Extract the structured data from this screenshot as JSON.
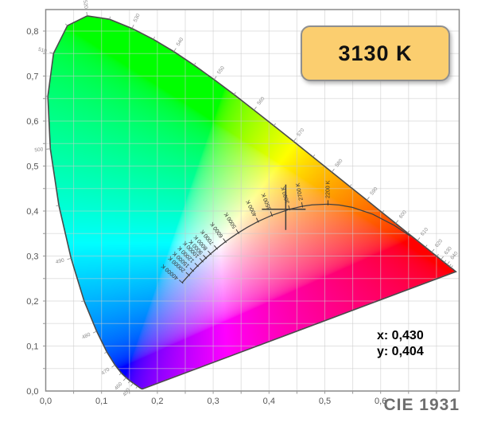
{
  "badge": {
    "label": "3130 K",
    "fill": "#FBCE6F",
    "border_color": "#8F8F8F"
  },
  "readout": {
    "x_label": "x: 0,430",
    "y_label": "y: 0,404"
  },
  "footer": {
    "label": "CIE 1931"
  },
  "chart_data": {
    "type": "scatter",
    "subtype": "cie-1931-chromaticity-diagram",
    "title": "CIE 1931",
    "xlabel": "x",
    "ylabel": "y",
    "xlim": [
      0,
      0.741
    ],
    "ylim": [
      0,
      0.848
    ],
    "grid": true,
    "grid_step": 0.05,
    "x_tick_labels": [
      "0,0",
      "0,1",
      "0,2",
      "0,3",
      "0,4",
      "0,5",
      "0,6"
    ],
    "y_tick_labels": [
      "0,0",
      "0,1",
      "0,2",
      "0,3",
      "0,4",
      "0,5",
      "0,6",
      "0,7",
      "0,8"
    ],
    "marker": {
      "x": 0.43,
      "y": 0.404,
      "cct_label": "3130 K"
    },
    "spectral_locus": [
      [
        380,
        0.1741,
        0.005
      ],
      [
        390,
        0.1738,
        0.0049
      ],
      [
        400,
        0.1733,
        0.0048
      ],
      [
        410,
        0.1726,
        0.0048
      ],
      [
        420,
        0.1714,
        0.0051
      ],
      [
        430,
        0.1689,
        0.0069
      ],
      [
        440,
        0.1644,
        0.0109
      ],
      [
        450,
        0.1566,
        0.0177
      ],
      [
        455,
        0.151,
        0.0227
      ],
      [
        460,
        0.144,
        0.0297
      ],
      [
        465,
        0.1355,
        0.0399
      ],
      [
        470,
        0.1241,
        0.0578
      ],
      [
        475,
        0.1096,
        0.0868
      ],
      [
        480,
        0.0913,
        0.1327
      ],
      [
        485,
        0.0687,
        0.2007
      ],
      [
        490,
        0.0454,
        0.295
      ],
      [
        495,
        0.0235,
        0.4127
      ],
      [
        500,
        0.0082,
        0.5384
      ],
      [
        505,
        0.0039,
        0.6548
      ],
      [
        510,
        0.0139,
        0.7502
      ],
      [
        515,
        0.0389,
        0.812
      ],
      [
        520,
        0.0743,
        0.8338
      ],
      [
        525,
        0.1142,
        0.8262
      ],
      [
        530,
        0.1547,
        0.8059
      ],
      [
        535,
        0.1929,
        0.7816
      ],
      [
        540,
        0.2296,
        0.7543
      ],
      [
        545,
        0.2658,
        0.7243
      ],
      [
        550,
        0.3016,
        0.6923
      ],
      [
        555,
        0.3373,
        0.6589
      ],
      [
        560,
        0.3731,
        0.6245
      ],
      [
        565,
        0.4087,
        0.5896
      ],
      [
        570,
        0.4441,
        0.5547
      ],
      [
        575,
        0.4788,
        0.5202
      ],
      [
        580,
        0.5125,
        0.4866
      ],
      [
        585,
        0.5448,
        0.4544
      ],
      [
        590,
        0.5752,
        0.4242
      ],
      [
        595,
        0.6029,
        0.3965
      ],
      [
        600,
        0.627,
        0.3725
      ],
      [
        605,
        0.6482,
        0.3514
      ],
      [
        610,
        0.6658,
        0.334
      ],
      [
        615,
        0.6801,
        0.3197
      ],
      [
        620,
        0.6915,
        0.3083
      ],
      [
        625,
        0.7006,
        0.2993
      ],
      [
        630,
        0.7079,
        0.292
      ],
      [
        635,
        0.714,
        0.2859
      ],
      [
        640,
        0.719,
        0.2809
      ],
      [
        645,
        0.723,
        0.277
      ],
      [
        650,
        0.726,
        0.274
      ],
      [
        660,
        0.73,
        0.27
      ],
      [
        670,
        0.732,
        0.268
      ],
      [
        680,
        0.7334,
        0.2666
      ],
      [
        700,
        0.7347,
        0.2653
      ]
    ],
    "wavelength_labels": [
      450,
      460,
      470,
      480,
      490,
      500,
      510,
      520,
      530,
      540,
      550,
      560,
      570,
      580,
      590,
      600,
      610,
      620,
      630,
      640
    ],
    "planckian_locus": [
      [
        1000,
        0.6528,
        0.3444
      ],
      [
        1200,
        0.625,
        0.3676
      ],
      [
        1500,
        0.5857,
        0.3931
      ],
      [
        1800,
        0.5493,
        0.4082
      ],
      [
        2000,
        0.5267,
        0.4133
      ],
      [
        2200,
        0.5056,
        0.4152
      ],
      [
        2500,
        0.477,
        0.4137
      ],
      [
        2700,
        0.4599,
        0.4106
      ],
      [
        3000,
        0.4369,
        0.4041
      ],
      [
        3500,
        0.4053,
        0.3907
      ],
      [
        4000,
        0.3805,
        0.3768
      ],
      [
        4500,
        0.3608,
        0.3636
      ],
      [
        5000,
        0.3451,
        0.3516
      ],
      [
        5500,
        0.3325,
        0.3411
      ],
      [
        6000,
        0.3221,
        0.3318
      ],
      [
        6500,
        0.3135,
        0.3237
      ],
      [
        7000,
        0.3064,
        0.3166
      ],
      [
        8000,
        0.2952,
        0.3048
      ],
      [
        9000,
        0.2869,
        0.2956
      ],
      [
        10000,
        0.2807,
        0.2884
      ],
      [
        12000,
        0.2721,
        0.278
      ],
      [
        15000,
        0.2637,
        0.2673
      ],
      [
        20000,
        0.2565,
        0.2577
      ],
      [
        30000,
        0.2487,
        0.2468
      ],
      [
        40000,
        0.2445,
        0.2408
      ]
    ],
    "cct_labels": [
      [
        2200,
        "2200 K"
      ],
      [
        2700,
        "2700 K"
      ],
      [
        3000,
        "3000 K"
      ],
      [
        3500,
        "3500 K"
      ],
      [
        4000,
        "4000 K"
      ],
      [
        5000,
        "5000 K"
      ],
      [
        6000,
        "6000 K"
      ],
      [
        7000,
        "7000 K"
      ],
      [
        8000,
        "8000 K"
      ],
      [
        9000,
        "9000 K"
      ],
      [
        10000,
        "10000 K"
      ],
      [
        12000,
        "12000 K"
      ],
      [
        15000,
        "15000 K"
      ],
      [
        20000,
        "20000 K"
      ],
      [
        40000,
        "40000 K"
      ]
    ],
    "colors": {
      "grid": "#CBCBCB",
      "plot_border": "#8A8A8A",
      "locus_outline": "#4A4A4A",
      "planckian_curve": "#3F3F3F",
      "crosshair": "#3C3C3C",
      "axis_text": "#555555",
      "wavelength_text": "#8A8A8A",
      "cct_text": "#333333"
    }
  }
}
